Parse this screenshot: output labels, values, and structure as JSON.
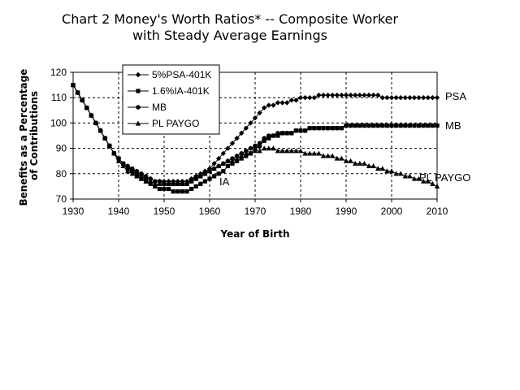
{
  "chart_data": {
    "type": "line",
    "title_line1": "Chart 2 Money's Worth Ratios* -- Composite Worker",
    "title_line2": "with Steady Average Earnings",
    "xlabel": "Year of Birth",
    "ylabel_line1": "Benefits as a Percentage",
    "ylabel_line2": "of Contributions",
    "xlim": [
      1930,
      2010
    ],
    "ylim": [
      70,
      120
    ],
    "x_ticks": [
      1930,
      1940,
      1950,
      1960,
      1970,
      1980,
      1990,
      2000,
      2010
    ],
    "y_ticks": [
      70,
      80,
      90,
      100,
      110,
      120
    ],
    "grid": "dashed",
    "legend_position": "top-left",
    "x": [
      1930,
      1931,
      1932,
      1933,
      1934,
      1935,
      1936,
      1937,
      1938,
      1939,
      1940,
      1941,
      1942,
      1943,
      1944,
      1945,
      1946,
      1947,
      1948,
      1949,
      1950,
      1951,
      1952,
      1953,
      1954,
      1955,
      1956,
      1957,
      1958,
      1959,
      1960,
      1961,
      1962,
      1963,
      1964,
      1965,
      1966,
      1967,
      1968,
      1969,
      1970,
      1971,
      1972,
      1973,
      1974,
      1975,
      1976,
      1977,
      1978,
      1979,
      1980,
      1981,
      1982,
      1983,
      1984,
      1985,
      1986,
      1987,
      1988,
      1989,
      1990,
      1991,
      1992,
      1993,
      1994,
      1995,
      1996,
      1997,
      1998,
      1999,
      2000,
      2001,
      2002,
      2003,
      2004,
      2005,
      2006,
      2007,
      2008,
      2009,
      2010
    ],
    "series": [
      {
        "name": "5%PSA-401K",
        "end_label": "PSA",
        "marker": "diamond",
        "values": [
          115,
          112,
          109,
          106,
          103,
          100,
          97,
          94,
          91,
          88,
          86,
          84,
          83,
          81,
          80,
          79,
          78,
          78,
          77,
          77,
          77,
          77,
          77,
          77,
          77,
          77,
          78,
          79,
          80,
          81,
          82,
          84,
          86,
          88,
          90,
          92,
          94,
          96,
          98,
          100,
          102,
          104,
          106,
          107,
          107,
          108,
          108,
          108,
          109,
          109,
          110,
          110,
          110,
          110,
          111,
          111,
          111,
          111,
          111,
          111,
          111,
          111,
          111,
          111,
          111,
          111,
          111,
          111,
          110,
          110,
          110,
          110,
          110,
          110,
          110,
          110,
          110,
          110,
          110,
          110,
          110
        ]
      },
      {
        "name": "1.6%IA-401K",
        "end_label": "IA",
        "marker": "square",
        "values": [
          115,
          112,
          109,
          106,
          103,
          100,
          97,
          94,
          91,
          88,
          86,
          84,
          82,
          81,
          79,
          78,
          77,
          76,
          75,
          74,
          74,
          74,
          73,
          73,
          73,
          73,
          74,
          75,
          76,
          77,
          78,
          79,
          80,
          81,
          83,
          84,
          85,
          86,
          87,
          88,
          90,
          91,
          93,
          94,
          95,
          95,
          96,
          96,
          96,
          97,
          97,
          97,
          98,
          98,
          98,
          98,
          98,
          98,
          98,
          98,
          99,
          99,
          99,
          99,
          99,
          99,
          99,
          99,
          99,
          99,
          99,
          99,
          99,
          99,
          99,
          99,
          99,
          99,
          99,
          99,
          99
        ]
      },
      {
        "name": "MB",
        "end_label": "MB",
        "marker": "circle",
        "values": [
          115,
          112,
          109,
          106,
          103,
          100,
          97,
          94,
          91,
          88,
          86,
          84,
          83,
          82,
          81,
          80,
          79,
          78,
          77,
          77,
          76,
          76,
          76,
          76,
          76,
          76,
          77,
          78,
          79,
          80,
          81,
          82,
          83,
          84,
          85,
          86,
          87,
          88,
          89,
          90,
          91,
          92,
          94,
          95,
          95,
          96,
          96,
          96,
          96,
          97,
          97,
          97,
          98,
          98,
          98,
          98,
          98,
          98,
          98,
          98,
          99,
          99,
          99,
          99,
          99,
          99,
          99,
          99,
          99,
          99,
          99,
          99,
          99,
          99,
          99,
          99,
          99,
          99,
          99,
          99,
          99
        ]
      },
      {
        "name": "PL PAYGO",
        "end_label": "PL PAYGO",
        "marker": "triangle",
        "values": [
          115,
          112,
          109,
          106,
          103,
          100,
          97,
          94,
          91,
          88,
          85,
          83,
          81,
          80,
          79,
          78,
          77,
          77,
          76,
          76,
          76,
          76,
          76,
          76,
          76,
          76,
          77,
          78,
          79,
          80,
          81,
          82,
          83,
          84,
          85,
          85,
          86,
          87,
          88,
          88,
          89,
          89,
          90,
          90,
          90,
          89,
          89,
          89,
          89,
          89,
          89,
          88,
          88,
          88,
          88,
          87,
          87,
          87,
          86,
          86,
          85,
          85,
          84,
          84,
          84,
          83,
          83,
          82,
          82,
          81,
          81,
          80,
          80,
          79,
          79,
          78,
          78,
          77,
          77,
          76,
          75
        ]
      }
    ]
  }
}
